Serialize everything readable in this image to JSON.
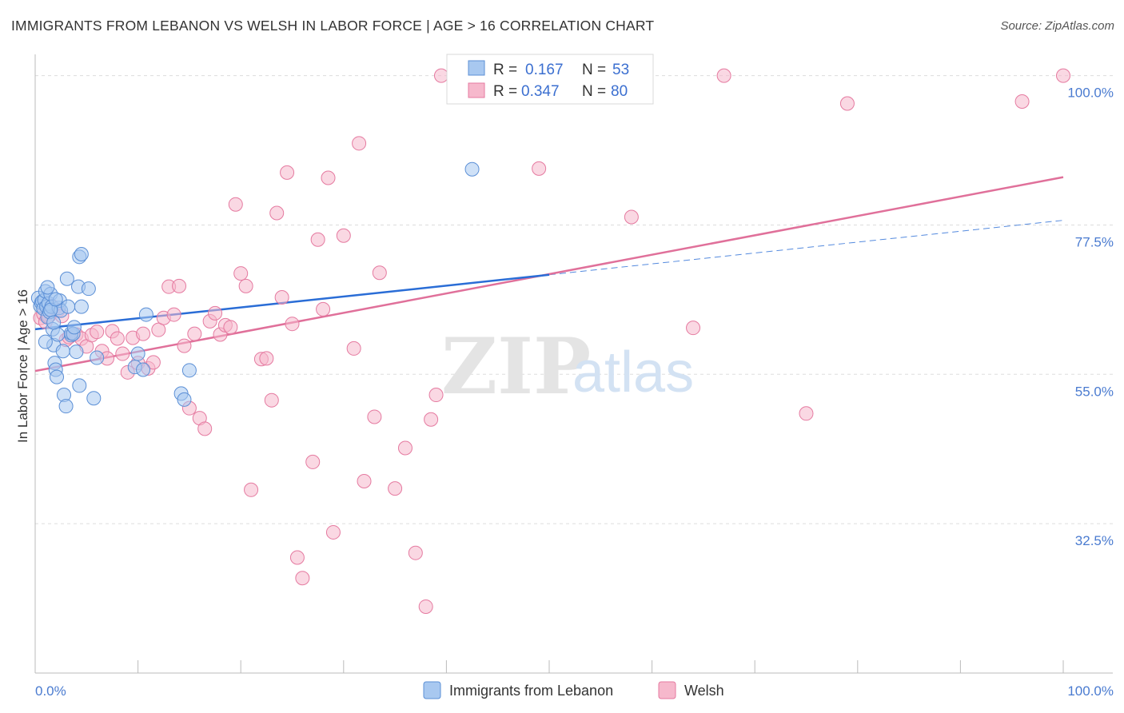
{
  "title": "IMMIGRANTS FROM LEBANON VS WELSH IN LABOR FORCE | AGE > 16 CORRELATION CHART",
  "source": "Source: ZipAtlas.com",
  "watermark": {
    "zip": "ZIP",
    "atlas": "atlas"
  },
  "colors": {
    "blue_fill": "#a8c8f0",
    "blue_stroke": "#5b8fd6",
    "blue_line": "#2a6dd6",
    "pink_fill": "#f6b8cc",
    "pink_stroke": "#e57aa0",
    "pink_line": "#e0709a",
    "grid": "#dddddd",
    "tick_label": "#4a7bd0"
  },
  "legend": {
    "rows": [
      {
        "r_label": "R =",
        "r_value": "0.167",
        "n_label": "N =",
        "n_value": "53"
      },
      {
        "r_label": "R =",
        "r_value": "0.347",
        "n_label": "N =",
        "n_value": "80"
      }
    ]
  },
  "chart_data": {
    "type": "scatter",
    "title": "IMMIGRANTS FROM LEBANON VS WELSH IN LABOR FORCE | AGE > 16 CORRELATION CHART",
    "xlabel": "",
    "ylabel": "In Labor Force | Age > 16",
    "xlim": [
      0,
      100
    ],
    "ylim": [
      10,
      102
    ],
    "x_tick_labels": [
      "0.0%",
      "100.0%"
    ],
    "y_ticks": [
      {
        "value": 32.5,
        "label": "32.5%"
      },
      {
        "value": 55.0,
        "label": "55.0%"
      },
      {
        "value": 77.5,
        "label": "77.5%"
      },
      {
        "value": 100.0,
        "label": "100.0%"
      }
    ],
    "grid": true,
    "legend_position": "bottom",
    "series": [
      {
        "name": "Immigrants from Lebanon",
        "color": "blue",
        "trend": {
          "x0": 0,
          "y0": 61.8,
          "x1": 50,
          "y1": 70.0,
          "dashed_to_x": 100,
          "dashed_to_y": 78.2
        },
        "points": [
          [
            0.3,
            66.5
          ],
          [
            0.5,
            65.3
          ],
          [
            0.6,
            65.8
          ],
          [
            0.7,
            66.0
          ],
          [
            0.8,
            64.9
          ],
          [
            0.9,
            66.2
          ],
          [
            1.0,
            67.5
          ],
          [
            1.1,
            65.2
          ],
          [
            1.2,
            63.6
          ],
          [
            1.3,
            65.7
          ],
          [
            1.4,
            64.4
          ],
          [
            1.5,
            67.1
          ],
          [
            1.6,
            65.2
          ],
          [
            1.7,
            61.8
          ],
          [
            1.8,
            59.4
          ],
          [
            1.9,
            56.7
          ],
          [
            2.0,
            55.7
          ],
          [
            2.1,
            54.6
          ],
          [
            2.2,
            61.0
          ],
          [
            2.3,
            65.0
          ],
          [
            2.4,
            66.1
          ],
          [
            2.5,
            64.6
          ],
          [
            2.7,
            58.5
          ],
          [
            2.8,
            51.9
          ],
          [
            3.0,
            50.2
          ],
          [
            3.1,
            69.4
          ],
          [
            3.2,
            65.2
          ],
          [
            1.0,
            59.9
          ],
          [
            1.2,
            68.1
          ],
          [
            1.5,
            64.7
          ],
          [
            1.8,
            62.8
          ],
          [
            2.0,
            66.3
          ],
          [
            3.5,
            60.9
          ],
          [
            4.0,
            58.4
          ],
          [
            3.5,
            61.2
          ],
          [
            3.7,
            61.1
          ],
          [
            3.8,
            62.1
          ],
          [
            4.2,
            68.2
          ],
          [
            4.3,
            72.7
          ],
          [
            4.5,
            73.1
          ],
          [
            4.3,
            53.3
          ],
          [
            4.5,
            65.2
          ],
          [
            5.2,
            67.9
          ],
          [
            5.7,
            51.4
          ],
          [
            6.0,
            57.5
          ],
          [
            9.7,
            56.1
          ],
          [
            10.0,
            58.1
          ],
          [
            10.5,
            55.7
          ],
          [
            10.8,
            64.0
          ],
          [
            14.2,
            52.1
          ],
          [
            14.5,
            51.2
          ],
          [
            15.0,
            55.6
          ],
          [
            42.5,
            85.9
          ]
        ]
      },
      {
        "name": "Welsh",
        "color": "pink",
        "trend": {
          "x0": 0,
          "y0": 55.5,
          "x1": 100,
          "y1": 84.7
        },
        "points": [
          [
            0.5,
            63.5
          ],
          [
            0.8,
            64.1
          ],
          [
            1.0,
            62.9
          ],
          [
            1.3,
            63.7
          ],
          [
            1.6,
            65.3
          ],
          [
            1.9,
            64.9
          ],
          [
            2.2,
            64.6
          ],
          [
            2.6,
            63.8
          ],
          [
            3.0,
            60.2
          ],
          [
            3.3,
            60.6
          ],
          [
            4.0,
            61.0
          ],
          [
            4.5,
            60.4
          ],
          [
            5.0,
            59.2
          ],
          [
            5.5,
            60.9
          ],
          [
            6.0,
            61.4
          ],
          [
            6.5,
            58.5
          ],
          [
            7.0,
            57.4
          ],
          [
            7.5,
            61.5
          ],
          [
            8.0,
            60.4
          ],
          [
            8.5,
            58.1
          ],
          [
            9.0,
            55.3
          ],
          [
            9.5,
            60.5
          ],
          [
            10.0,
            56.7
          ],
          [
            10.5,
            61.1
          ],
          [
            11.0,
            55.9
          ],
          [
            11.5,
            56.8
          ],
          [
            12.0,
            61.7
          ],
          [
            12.5,
            63.5
          ],
          [
            13.0,
            68.2
          ],
          [
            13.5,
            64.0
          ],
          [
            14.0,
            68.3
          ],
          [
            14.5,
            59.3
          ],
          [
            15.0,
            49.9
          ],
          [
            15.5,
            61.1
          ],
          [
            16.0,
            48.4
          ],
          [
            16.5,
            46.8
          ],
          [
            17.0,
            63.0
          ],
          [
            17.5,
            64.2
          ],
          [
            18.0,
            61.0
          ],
          [
            18.5,
            62.4
          ],
          [
            19.0,
            62.1
          ],
          [
            19.5,
            80.6
          ],
          [
            20.0,
            70.2
          ],
          [
            20.5,
            68.3
          ],
          [
            21.0,
            37.6
          ],
          [
            22.0,
            57.3
          ],
          [
            22.5,
            57.4
          ],
          [
            23.0,
            51.1
          ],
          [
            23.5,
            79.3
          ],
          [
            24.0,
            66.6
          ],
          [
            24.5,
            85.4
          ],
          [
            25.0,
            62.6
          ],
          [
            25.5,
            27.4
          ],
          [
            26.0,
            24.3
          ],
          [
            27.0,
            41.8
          ],
          [
            27.5,
            75.3
          ],
          [
            28.0,
            64.8
          ],
          [
            28.5,
            84.6
          ],
          [
            29.0,
            31.2
          ],
          [
            30.0,
            75.9
          ],
          [
            31.0,
            58.9
          ],
          [
            31.5,
            89.8
          ],
          [
            32.0,
            38.9
          ],
          [
            33.0,
            48.6
          ],
          [
            33.5,
            70.3
          ],
          [
            35.0,
            37.8
          ],
          [
            36.0,
            43.9
          ],
          [
            37.0,
            28.1
          ],
          [
            38.0,
            20.0
          ],
          [
            38.5,
            48.2
          ],
          [
            39.0,
            51.9
          ],
          [
            39.5,
            100.0
          ],
          [
            49.0,
            86.0
          ],
          [
            58.0,
            78.7
          ],
          [
            64.0,
            62.0
          ],
          [
            67.0,
            100.0
          ],
          [
            75.0,
            49.1
          ],
          [
            79.0,
            95.8
          ],
          [
            96.0,
            96.1
          ],
          [
            100.0,
            100.0
          ]
        ]
      }
    ]
  }
}
